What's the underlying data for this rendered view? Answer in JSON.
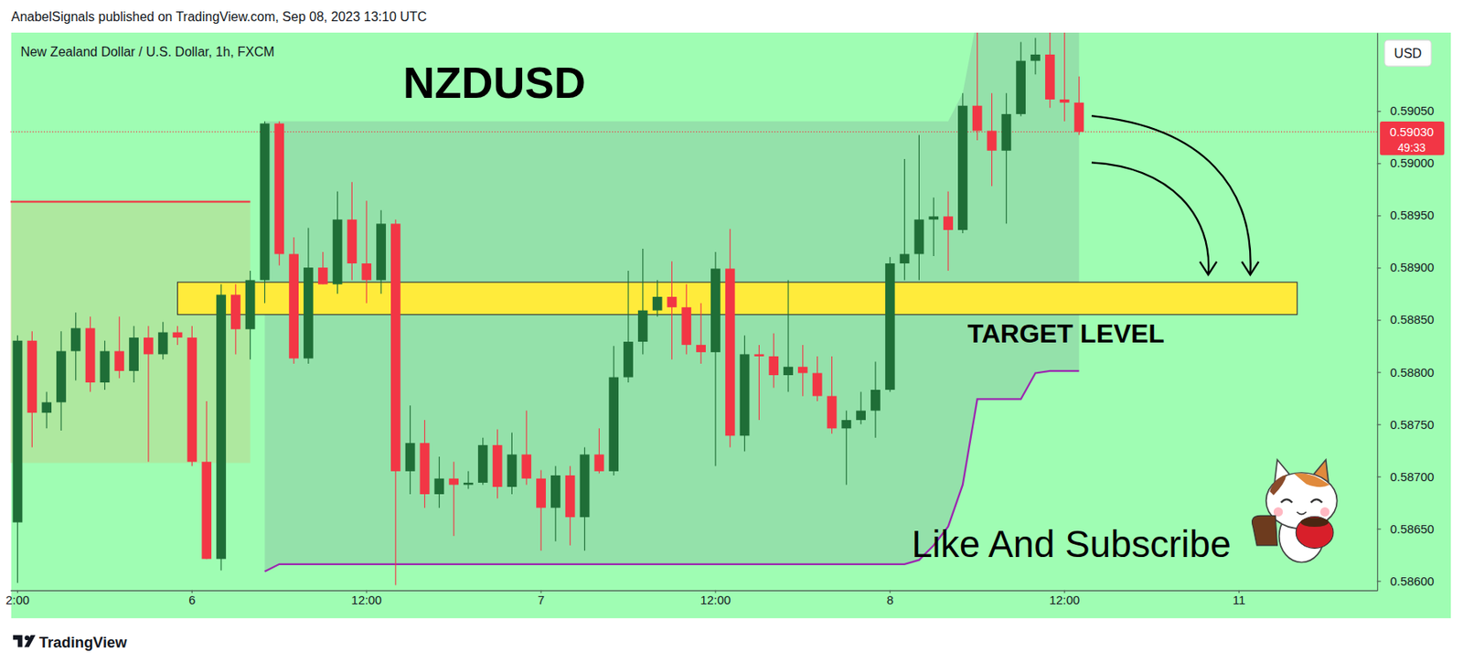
{
  "header": "AnabelSignals published on TradingView.com, Sep 08, 2023 13:10 UTC",
  "brand": "TradingView",
  "chart_data": {
    "type": "candlestick",
    "title": "NZDUSD",
    "subtitle": "New Zealand Dollar / U.S. Dollar, 1h, FXCM",
    "currency": "USD",
    "categories": [
      "2:00",
      null,
      null,
      null,
      null,
      null,
      null,
      null,
      null,
      null,
      null,
      null,
      "6",
      null,
      null,
      null,
      null,
      null,
      null,
      null,
      null,
      null,
      null,
      null,
      "12:00",
      null,
      null,
      null,
      null,
      null,
      null,
      null,
      null,
      null,
      null,
      null,
      "7",
      null,
      null,
      null,
      null,
      null,
      null,
      null,
      null,
      null,
      null,
      null,
      "12:00",
      null,
      null,
      null,
      null,
      null,
      null,
      null,
      null,
      null,
      null,
      null,
      "8",
      null,
      null,
      null,
      null,
      null,
      null,
      null,
      null,
      null,
      null,
      null,
      "12:00",
      null,
      null,
      null,
      null,
      null,
      null,
      null,
      null,
      null,
      null,
      null,
      "11",
      null,
      null,
      null,
      null,
      null,
      null,
      null,
      null,
      null
    ],
    "open": [
      0.58656,
      0.5883,
      0.58761,
      0.58771,
      0.5882,
      0.58842,
      0.5879,
      0.5882,
      0.58801,
      0.58833,
      0.58817,
      0.58838,
      0.58833,
      0.58714,
      0.58621,
      0.58874,
      0.58841,
      0.58888,
      0.59038,
      0.58913,
      0.58813,
      0.589,
      0.58884,
      0.58946,
      0.58904,
      0.58888,
      0.58942,
      0.58705,
      0.58732,
      0.58683,
      0.58698,
      0.58692,
      0.58694,
      0.5873,
      0.5869,
      0.58721,
      0.58698,
      0.5867,
      0.58701,
      0.58661,
      0.58721,
      0.58705,
      0.58795,
      0.58829,
      0.58859,
      0.58872,
      0.58862,
      0.58826,
      0.58819,
      0.58899,
      0.58739,
      0.58817,
      0.58815,
      0.58797,
      0.58805,
      0.58799,
      0.58777,
      0.58746,
      0.58754,
      0.58763,
      0.58783,
      0.58904,
      0.58913,
      0.58946,
      0.58949,
      0.58936,
      0.59055,
      0.59031,
      0.59012,
      0.59047,
      0.59098,
      0.59104,
      0.59061,
      0.59058,
      null,
      null,
      null,
      null,
      null,
      null,
      null,
      null,
      null,
      null,
      null,
      null,
      null,
      null,
      null,
      null,
      null,
      null,
      null,
      null
    ],
    "high": [
      0.58835,
      0.58839,
      0.58781,
      0.58839,
      0.58857,
      0.58853,
      0.5883,
      0.58853,
      0.58844,
      0.58844,
      0.58848,
      0.58844,
      0.58844,
      0.58772,
      0.58884,
      0.58884,
      0.58897,
      0.5904,
      0.5904,
      0.58929,
      0.58938,
      0.58915,
      0.58973,
      0.58982,
      0.58964,
      0.58955,
      0.58946,
      0.58768,
      0.58754,
      0.58719,
      0.58714,
      0.58705,
      0.58737,
      0.58745,
      0.58742,
      0.58763,
      0.58706,
      0.5871,
      0.5871,
      0.58728,
      0.58746,
      0.58825,
      0.58897,
      0.58918,
      0.58888,
      0.58906,
      0.58884,
      0.58866,
      0.58915,
      0.58937,
      0.58835,
      0.58826,
      0.58837,
      0.58888,
      0.58826,
      0.58815,
      0.58815,
      0.58763,
      0.58781,
      0.5881,
      0.5891,
      0.59004,
      0.59027,
      0.58967,
      0.58973,
      0.59067,
      0.5914,
      0.59067,
      0.59067,
      0.59116,
      0.5912,
      0.59135,
      0.59135,
      0.59083,
      null,
      null,
      null,
      null,
      null,
      null,
      null,
      null,
      null,
      null,
      null,
      null,
      null,
      null,
      null,
      null,
      null,
      null,
      null,
      null
    ],
    "low": [
      0.58598,
      0.58728,
      0.58746,
      0.58744,
      0.58792,
      0.58781,
      0.58783,
      0.58794,
      0.5879,
      0.58714,
      0.58812,
      0.58826,
      0.5871,
      0.58621,
      0.5861,
      0.58817,
      0.58812,
      0.58866,
      0.58902,
      0.58808,
      0.58808,
      0.58884,
      0.58875,
      0.58888,
      0.58866,
      0.58875,
      0.58596,
      0.58683,
      0.5867,
      0.5867,
      0.58643,
      0.58688,
      0.58692,
      0.58679,
      0.58683,
      0.58692,
      0.58629,
      0.58638,
      0.58634,
      0.58629,
      0.58703,
      0.58701,
      0.5879,
      0.58817,
      0.58853,
      0.58812,
      0.58817,
      0.58808,
      0.5871,
      0.58728,
      0.58724,
      0.58754,
      0.58785,
      0.58781,
      0.58777,
      0.58772,
      0.58741,
      0.58692,
      0.5875,
      0.58737,
      0.58781,
      0.58888,
      0.58888,
      0.58911,
      0.58897,
      0.58933,
      0.59022,
      0.58978,
      0.58942,
      0.59045,
      0.59085,
      0.59053,
      0.5904,
      0.59027,
      null,
      null,
      null,
      null,
      null,
      null,
      null,
      null,
      null,
      null,
      null,
      null,
      null,
      null,
      null,
      null,
      null,
      null,
      null,
      null
    ],
    "close": [
      0.5883,
      0.58761,
      0.58771,
      0.5882,
      0.58842,
      0.5879,
      0.5882,
      0.58801,
      0.58833,
      0.58817,
      0.58838,
      0.58833,
      0.58714,
      0.58621,
      0.58874,
      0.58841,
      0.58888,
      0.59038,
      0.58913,
      0.58813,
      0.589,
      0.58884,
      0.58946,
      0.58904,
      0.58888,
      0.58942,
      0.58705,
      0.58732,
      0.58683,
      0.58698,
      0.58692,
      0.58694,
      0.5873,
      0.5869,
      0.58721,
      0.58698,
      0.5867,
      0.58701,
      0.58661,
      0.58721,
      0.58705,
      0.58795,
      0.58829,
      0.58859,
      0.58872,
      0.58862,
      0.58826,
      0.58819,
      0.58899,
      0.58739,
      0.58817,
      0.58815,
      0.58797,
      0.58805,
      0.58799,
      0.58777,
      0.58746,
      0.58754,
      0.58763,
      0.58783,
      0.58904,
      0.58913,
      0.58946,
      0.58949,
      0.58936,
      0.59055,
      0.59031,
      0.59012,
      0.59047,
      0.59098,
      0.59104,
      0.59061,
      0.59058,
      0.5903,
      null,
      null,
      null,
      null,
      null,
      null,
      null,
      null,
      null,
      null,
      null,
      null,
      null,
      null,
      null,
      null,
      null,
      null,
      null,
      null
    ],
    "ylim": [
      0.58591,
      0.59125
    ],
    "yticks": [
      {
        "value": 0.586,
        "label": "0.58600"
      },
      {
        "value": 0.5865,
        "label": "0.58650"
      },
      {
        "value": 0.587,
        "label": "0.58700"
      },
      {
        "value": 0.5875,
        "label": "0.58750"
      },
      {
        "value": 0.588,
        "label": "0.58800"
      },
      {
        "value": 0.5885,
        "label": "0.58850"
      },
      {
        "value": 0.589,
        "label": "0.58900"
      },
      {
        "value": 0.5895,
        "label": "0.58950"
      },
      {
        "value": 0.59,
        "label": "0.59000"
      },
      {
        "value": 0.5905,
        "label": "0.59050"
      }
    ],
    "grid": false,
    "current_price": {
      "value": 0.5903,
      "label": "0.59030",
      "countdown": "49:33",
      "color": "#f23645"
    },
    "band": {
      "upper": [
        null,
        null,
        null,
        null,
        null,
        null,
        null,
        null,
        null,
        null,
        null,
        null,
        null,
        null,
        null,
        null,
        null,
        0.5904,
        0.5904,
        0.5904,
        0.5904,
        0.5904,
        0.5904,
        0.5904,
        0.5904,
        0.5904,
        0.5904,
        0.5904,
        0.5904,
        0.5904,
        0.5904,
        0.5904,
        0.5904,
        0.5904,
        0.5904,
        0.5904,
        0.5904,
        0.5904,
        0.5904,
        0.5904,
        0.5904,
        0.5904,
        0.5904,
        0.5904,
        0.5904,
        0.5904,
        0.5904,
        0.5904,
        0.5904,
        0.5904,
        0.5904,
        0.5904,
        0.5904,
        0.5904,
        0.5904,
        0.5904,
        0.5904,
        0.5904,
        0.5904,
        0.5904,
        0.5904,
        0.5904,
        0.5904,
        0.5904,
        0.5904,
        0.59067,
        0.5914,
        0.5914,
        0.5914,
        0.5914,
        0.5914,
        0.5914,
        0.5914,
        0.5914,
        null,
        null,
        null,
        null,
        null,
        null,
        null,
        null,
        null,
        null,
        null,
        null,
        null,
        null,
        null,
        null,
        null,
        null,
        null,
        null
      ],
      "lower": [
        null,
        null,
        null,
        null,
        null,
        null,
        null,
        null,
        null,
        null,
        null,
        null,
        null,
        null,
        null,
        null,
        null,
        0.58609,
        0.58616,
        0.58616,
        0.58616,
        0.58616,
        0.58616,
        0.58616,
        0.58616,
        0.58616,
        0.58616,
        0.58616,
        0.58616,
        0.58616,
        0.58616,
        0.58616,
        0.58616,
        0.58616,
        0.58616,
        0.58616,
        0.58616,
        0.58616,
        0.58616,
        0.58616,
        0.58616,
        0.58616,
        0.58616,
        0.58616,
        0.58616,
        0.58616,
        0.58616,
        0.58616,
        0.58616,
        0.58616,
        0.58616,
        0.58616,
        0.58616,
        0.58616,
        0.58616,
        0.58616,
        0.58616,
        0.58616,
        0.58616,
        0.58616,
        0.58616,
        0.58616,
        0.5862,
        0.58634,
        0.58652,
        0.58692,
        0.58774,
        0.58774,
        0.58774,
        0.58774,
        0.58799,
        0.58801,
        0.58801,
        0.58801,
        null,
        null,
        null,
        null,
        null,
        null,
        null,
        null,
        null,
        null,
        null,
        null,
        null,
        null,
        null,
        null,
        null,
        null,
        null,
        null
      ],
      "color": "#9c27b0"
    },
    "resistance": {
      "value": 0.58963,
      "bottom": 0.58713,
      "start": 0,
      "end": 16,
      "color": "#f23645"
    },
    "target_zone": {
      "label": "TARGET LEVEL",
      "top": 0.58886,
      "bottom": 0.58855,
      "start": 11,
      "end": 88,
      "color": "#ffeb3b"
    },
    "annotations": [
      "Like And Subscribe"
    ]
  }
}
